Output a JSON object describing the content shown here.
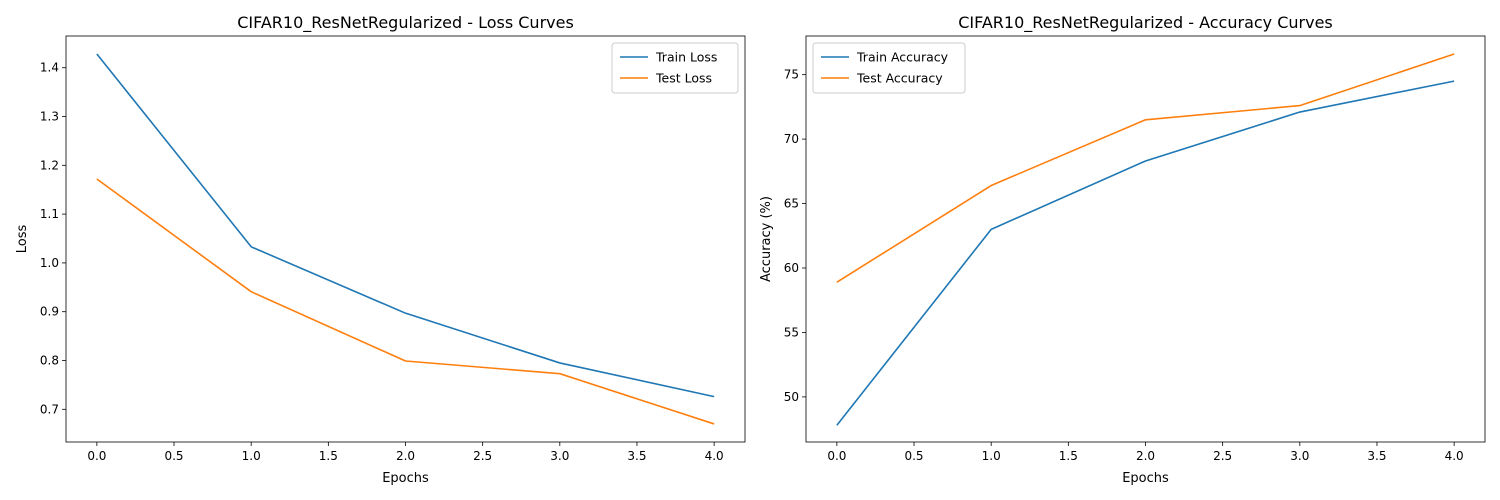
{
  "chart_data": [
    {
      "type": "line",
      "title": "CIFAR10_ResNetRegularized - Loss Curves",
      "xlabel": "Epochs",
      "ylabel": "Loss",
      "x": [
        0,
        1,
        2,
        3,
        4
      ],
      "xlim": [
        -0.2,
        4.2
      ],
      "ylim": [
        0.633,
        1.465
      ],
      "xticks": [
        "0.0",
        "0.5",
        "1.0",
        "1.5",
        "2.0",
        "2.5",
        "3.0",
        "3.5",
        "4.0"
      ],
      "yticks": [
        "0.7",
        "0.8",
        "0.9",
        "1.0",
        "1.1",
        "1.2",
        "1.3",
        "1.4"
      ],
      "legend": "top-right",
      "grid": false,
      "series": [
        {
          "name": "Train Loss",
          "color": "#1f77b4",
          "values": [
            1.428,
            1.033,
            0.897,
            0.795,
            0.726
          ]
        },
        {
          "name": "Test Loss",
          "color": "#ff7f0e",
          "values": [
            1.172,
            0.941,
            0.799,
            0.773,
            0.67
          ]
        }
      ]
    },
    {
      "type": "line",
      "title": "CIFAR10_ResNetRegularized - Accuracy Curves",
      "xlabel": "Epochs",
      "ylabel": "Accuracy (%)",
      "x": [
        0,
        1,
        2,
        3,
        4
      ],
      "xlim": [
        -0.2,
        4.2
      ],
      "ylim": [
        46.5,
        78.0
      ],
      "xticks": [
        "0.0",
        "0.5",
        "1.0",
        "1.5",
        "2.0",
        "2.5",
        "3.0",
        "3.5",
        "4.0"
      ],
      "yticks": [
        "50",
        "55",
        "60",
        "65",
        "70",
        "75"
      ],
      "legend": "top-left",
      "grid": false,
      "series": [
        {
          "name": "Train Accuracy",
          "color": "#1f77b4",
          "values": [
            47.8,
            63.0,
            68.3,
            72.1,
            74.5
          ]
        },
        {
          "name": "Test Accuracy",
          "color": "#ff7f0e",
          "values": [
            58.9,
            66.4,
            71.5,
            72.6,
            76.6
          ]
        }
      ]
    }
  ]
}
